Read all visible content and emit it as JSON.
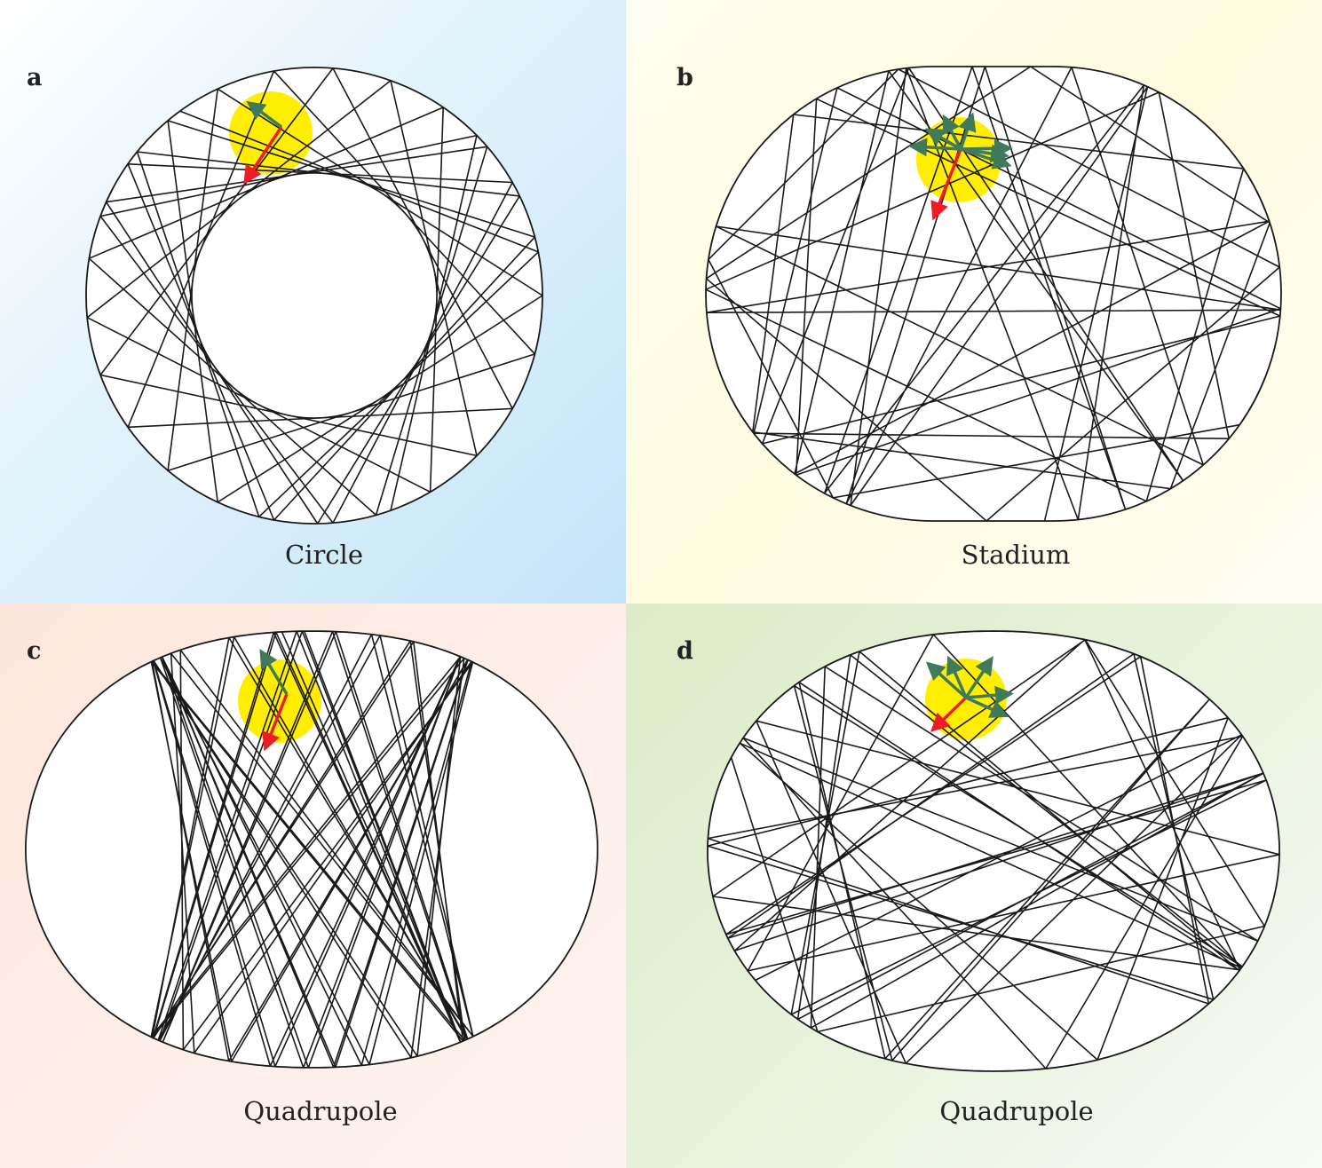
{
  "panels": [
    {
      "letter": "a",
      "caption": "Circle",
      "shape": "circle",
      "dynamics": "regular"
    },
    {
      "letter": "b",
      "caption": "Stadium",
      "shape": "stadium",
      "dynamics": "chaotic"
    },
    {
      "letter": "c",
      "caption": "Quadrupole",
      "shape": "quadrupole",
      "dynamics": "regular"
    },
    {
      "letter": "d",
      "caption": "Quadrupole",
      "shape": "quadrupole",
      "dynamics": "chaotic"
    }
  ],
  "colors": {
    "trajectory": "#1a1a1a",
    "spot": "#ffee00",
    "red_arrow": "#ee1c25",
    "green_arrow": "#3f7a5a"
  }
}
